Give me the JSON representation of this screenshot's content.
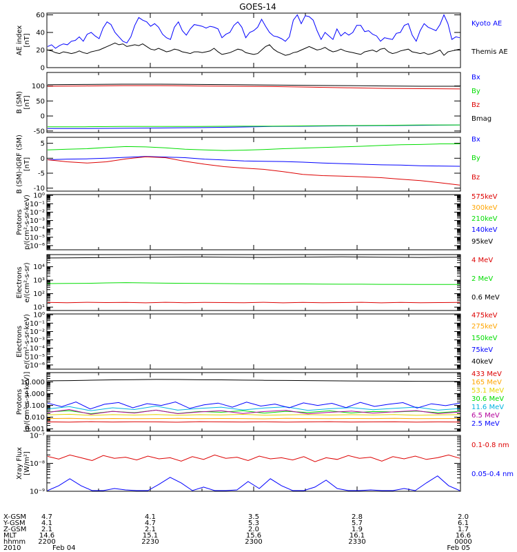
{
  "title": "GOES-14",
  "colors": {
    "black": "#000000",
    "blue": "#0000ff",
    "green": "#00dd00",
    "red": "#dd0000",
    "orange": "#ffa500",
    "gold": "#e6d200",
    "cyan": "#00b4e0",
    "magenta": "#b4009b"
  },
  "time_axis": {
    "row_labels": [
      "X-GSM",
      "Y-GSM",
      "Z-GSM",
      "MLT",
      "hhmm",
      "2010"
    ],
    "columns": [
      [
        "4.7",
        "4.1",
        "2.1",
        "14.6",
        "2200",
        "Feb 04"
      ],
      [
        "4.1",
        "4.7",
        "2.1",
        "15.1",
        "2230",
        ""
      ],
      [
        "3.5",
        "5.3",
        "2.0",
        "15.6",
        "2300",
        ""
      ],
      [
        "2.8",
        "5.7",
        "1.9",
        "16.1",
        "2330",
        ""
      ],
      [
        "2.0",
        "6.1",
        "1.7",
        "16.6",
        "0000",
        "Feb 05"
      ]
    ]
  },
  "chart_data": [
    {
      "type": "line",
      "ylabel": "AE index",
      "yunit": "[nT]",
      "scale": "linear",
      "ylim": [
        0,
        62
      ],
      "ticks": [
        {
          "label": "60",
          "v": 60
        },
        {
          "label": "40",
          "v": 40
        },
        {
          "label": "20",
          "v": 20
        },
        {
          "label": "0",
          "v": 0
        }
      ],
      "series": [
        {
          "name": "Kyoto AE",
          "color": "#0000ff",
          "values": [
            24,
            26,
            22,
            25,
            27,
            26,
            30,
            31,
            35,
            30,
            38,
            40,
            36,
            33,
            45,
            52,
            49,
            40,
            35,
            30,
            28,
            35,
            48,
            57,
            54,
            52,
            47,
            50,
            46,
            38,
            34,
            32,
            46,
            52,
            42,
            37,
            44,
            49,
            48,
            47,
            45,
            47,
            46,
            44,
            34,
            38,
            40,
            48,
            52,
            46,
            34,
            40,
            42,
            46,
            55,
            47,
            40,
            36,
            35,
            33,
            30,
            35,
            54,
            60,
            50,
            59,
            58,
            54,
            42,
            32,
            40,
            36,
            32,
            44,
            36,
            40,
            37,
            40,
            48,
            48,
            41,
            42,
            38,
            36,
            30,
            34,
            33,
            32,
            39,
            40,
            48,
            50,
            37,
            30,
            42,
            50,
            46,
            44,
            42,
            49,
            60,
            50,
            32,
            35,
            34
          ]
        },
        {
          "name": "Themis AE",
          "color": "#000000",
          "values": [
            20,
            19,
            17,
            16,
            18,
            17,
            16,
            17,
            19,
            17,
            16,
            18,
            19,
            20,
            22,
            24,
            26,
            28,
            26,
            27,
            24,
            25,
            26,
            25,
            27,
            24,
            21,
            20,
            22,
            20,
            18,
            19,
            21,
            20,
            18,
            17,
            16,
            18,
            18,
            17,
            18,
            19,
            22,
            18,
            15,
            16,
            17,
            19,
            21,
            20,
            17,
            16,
            15,
            16,
            20,
            24,
            26,
            21,
            18,
            16,
            14,
            15,
            17,
            18,
            20,
            22,
            24,
            22,
            20,
            21,
            23,
            20,
            18,
            19,
            21,
            19,
            18,
            17,
            16,
            15,
            18,
            19,
            20,
            18,
            21,
            22,
            18,
            16,
            17,
            19,
            20,
            21,
            18,
            17,
            16,
            17,
            15,
            16,
            18,
            20,
            14,
            18,
            19,
            20,
            21
          ]
        }
      ]
    },
    {
      "type": "line",
      "ylabel": "B (SM)",
      "yunit": "[nT]",
      "scale": "linear",
      "ylim": [
        -55,
        145
      ],
      "ticks": [
        {
          "label": "100",
          "v": 100
        },
        {
          "label": "50",
          "v": 50
        },
        {
          "label": "0",
          "v": 0
        },
        {
          "label": "-50",
          "v": -50
        }
      ],
      "series": [
        {
          "name": "Bx",
          "color": "#0000ff",
          "values": [
            -42,
            -42,
            -41,
            -40,
            -39,
            -37,
            -35,
            -34,
            -33,
            -32,
            -31,
            -30
          ]
        },
        {
          "name": "By",
          "color": "#00dd00",
          "values": [
            -36,
            -36,
            -35,
            -35,
            -35,
            -34,
            -34,
            -33,
            -32,
            -31,
            -30,
            -30
          ]
        },
        {
          "name": "Bz",
          "color": "#dd0000",
          "values": [
            99,
            100,
            101,
            101,
            100,
            99,
            98,
            96,
            94,
            92,
            91,
            90
          ]
        },
        {
          "name": "Bmag",
          "color": "#000000",
          "values": [
            104,
            105,
            106,
            106,
            105,
            104,
            103,
            102,
            101,
            100,
            99,
            99
          ]
        }
      ]
    },
    {
      "type": "line",
      "ylabel": "B (SM)-IGRF (SM)",
      "yunit": "[nT]",
      "scale": "linear",
      "ylim": [
        -11,
        7
      ],
      "ticks": [
        {
          "label": "5",
          "v": 5
        },
        {
          "label": "0",
          "v": 0
        },
        {
          "label": "-5",
          "v": -5
        },
        {
          "label": "-10",
          "v": -10
        }
      ],
      "series": [
        {
          "name": "Bx",
          "color": "#0000ff",
          "values": [
            -0.5,
            -0.3,
            -0.2,
            0,
            0.3,
            0.6,
            0.4,
            0.2,
            -0.3,
            -0.6,
            -0.9,
            -1.0,
            -1.1,
            -1.3,
            -1.6,
            -1.8,
            -2.0,
            -2.2,
            -2.3,
            -2.5,
            -2.6,
            -2.7
          ]
        },
        {
          "name": "By",
          "color": "#00dd00",
          "values": [
            2.8,
            3.0,
            3.2,
            3.6,
            3.9,
            3.8,
            3.5,
            3.0,
            2.8,
            2.6,
            2.7,
            2.9,
            3.2,
            3.4,
            3.6,
            3.8,
            4.0,
            4.3,
            4.5,
            4.6,
            4.8,
            4.8
          ]
        },
        {
          "name": "Bz",
          "color": "#dd0000",
          "values": [
            -0.5,
            -1.2,
            -1.6,
            -1.2,
            -0.2,
            0.5,
            0.2,
            -1.0,
            -2.0,
            -2.8,
            -3.3,
            -3.7,
            -4.5,
            -5.4,
            -5.8,
            -6.0,
            -6.2,
            -6.5,
            -7.0,
            -7.5,
            -8.2,
            -9.0
          ]
        }
      ]
    },
    {
      "type": "line",
      "ylabel": "Protons",
      "yunit": "p/(cm²-s-sr-keV)",
      "scale": "log",
      "ylim": [
        -6.5,
        0.1
      ],
      "ticks": [
        {
          "label": "10⁰",
          "v": 0
        },
        {
          "label": "10⁻¹",
          "v": -1
        },
        {
          "label": "10⁻²",
          "v": -2
        },
        {
          "label": "10⁻³",
          "v": -3
        },
        {
          "label": "10⁻⁴",
          "v": -4
        },
        {
          "label": "10⁻⁵",
          "v": -5
        },
        {
          "label": "10⁻⁶",
          "v": -6
        }
      ],
      "series": [
        {
          "name": "575keV",
          "color": "#dd0000",
          "values": []
        },
        {
          "name": "300keV",
          "color": "#ffa500",
          "values": []
        },
        {
          "name": "210keV",
          "color": "#00dd00",
          "values": []
        },
        {
          "name": "140keV",
          "color": "#0000ff",
          "values": []
        },
        {
          "name": "95keV",
          "color": "#000000",
          "values": []
        }
      ]
    },
    {
      "type": "line",
      "ylabel": "Electrons",
      "yunit": "e/(cm²-s-sr)",
      "scale": "log",
      "ylim": [
        0.75,
        4.9
      ],
      "ticks": [
        {
          "label": "10⁴",
          "v": 4
        },
        {
          "label": "10³",
          "v": 3
        },
        {
          "label": "10²",
          "v": 2
        },
        {
          "label": "10¹",
          "v": 1
        }
      ],
      "series": [
        {
          "name": "4 MeV",
          "color": "#dd0000",
          "values": [
            1.35,
            1.33,
            1.36,
            1.34,
            1.35,
            1.32,
            1.36,
            1.33,
            1.35,
            1.34,
            1.33,
            1.36,
            1.32,
            1.35,
            1.33,
            1.34,
            1.36,
            1.32,
            1.35,
            1.33,
            1.34,
            1.35
          ]
        },
        {
          "name": "2 MeV",
          "color": "#00dd00",
          "values": [
            2.75,
            2.76,
            2.77,
            2.8,
            2.82,
            2.8,
            2.78,
            2.77,
            2.76,
            2.75,
            2.74,
            2.73,
            2.72,
            2.72,
            2.71,
            2.7,
            2.7,
            2.69,
            2.69,
            2.68,
            2.68,
            2.68
          ]
        },
        {
          "name": "0.6 MeV",
          "color": "#000000",
          "values": [
            4.65,
            4.66,
            4.67,
            4.68,
            4.69,
            4.7,
            4.71,
            4.72,
            4.72,
            4.71,
            4.7,
            4.69,
            4.7,
            4.71,
            4.72,
            4.73,
            4.72,
            4.71,
            4.7,
            4.69,
            4.7,
            4.71
          ]
        }
      ]
    },
    {
      "type": "line",
      "ylabel": "Electrons",
      "yunit": "e/(cm²-s-sr-keV)",
      "scale": "log",
      "ylim": [
        -6.5,
        0.1
      ],
      "ticks": [
        {
          "label": "10⁰",
          "v": 0
        },
        {
          "label": "10⁻¹",
          "v": -1
        },
        {
          "label": "10⁻²",
          "v": -2
        },
        {
          "label": "10⁻³",
          "v": -3
        },
        {
          "label": "10⁻⁴",
          "v": -4
        },
        {
          "label": "10⁻⁵",
          "v": -5
        },
        {
          "label": "10⁻⁶",
          "v": -6
        }
      ],
      "series": [
        {
          "name": "475keV",
          "color": "#dd0000",
          "values": []
        },
        {
          "name": "275keV",
          "color": "#ffa500",
          "values": []
        },
        {
          "name": "150keV",
          "color": "#00dd00",
          "values": []
        },
        {
          "name": "75keV",
          "color": "#0000ff",
          "values": []
        },
        {
          "name": "40keV",
          "color": "#000000",
          "values": []
        }
      ]
    },
    {
      "type": "line",
      "ylabel": "Protons",
      "yunit": "[p/(cm²-s-sr-keV)]",
      "scale": "log",
      "ylim": [
        -3.2,
        1.8
      ],
      "ticks": [
        {
          "label": "10.000",
          "v": 1
        },
        {
          "label": "1.000",
          "v": 0
        },
        {
          "label": "0.100",
          "v": -1
        },
        {
          "label": "0.010",
          "v": -2
        },
        {
          "label": "0.001",
          "v": -3
        }
      ],
      "series": [
        {
          "name": "433 MeV",
          "color": "#dd0000",
          "values": [
            -2.4,
            -2.42,
            -2.38,
            -2.41,
            -2.39,
            -2.4,
            -2.43,
            -2.38,
            -2.4,
            -2.41,
            -2.39,
            -2.42,
            -2.4,
            -2.38,
            -2.41,
            -2.4,
            -2.39,
            -2.42,
            -2.4,
            -2.41
          ]
        },
        {
          "name": "165 MeV",
          "color": "#ffa500",
          "values": [
            -2.12,
            -2.1,
            -2.14,
            -2.11,
            -2.13,
            -2.12,
            -2.1,
            -2.13,
            -2.11,
            -2.12,
            -2.14,
            -2.1,
            -2.12,
            -2.13,
            -2.11,
            -2.12,
            -2.1,
            -2.13,
            -2.12,
            -2.11
          ]
        },
        {
          "name": "53.1 MeV",
          "color": "#e6d200",
          "values": [
            -1.8,
            -1.75,
            -1.85,
            -1.78,
            -1.82,
            -1.77,
            -1.84,
            -1.79,
            -1.81,
            -1.76,
            -1.83,
            -1.8,
            -1.78,
            -1.82,
            -1.79,
            -1.81,
            -1.77,
            -1.84,
            -1.8,
            -1.79
          ]
        },
        {
          "name": "30.6 MeV",
          "color": "#00dd00",
          "values": [
            -1.55,
            -1.45,
            -1.7,
            -1.5,
            -1.62,
            -1.4,
            -1.68,
            -1.52,
            -1.58,
            -1.44,
            -1.66,
            -1.5,
            -1.6,
            -1.46,
            -1.64,
            -1.52,
            -1.56,
            -1.48,
            -1.62,
            -1.5
          ]
        },
        {
          "name": "11.6 MeV",
          "color": "#00b4e0",
          "values": [
            -1.3,
            -1.1,
            -1.45,
            -1.2,
            -1.35,
            -1.05,
            -1.4,
            -1.25,
            -1.15,
            -1.38,
            -1.22,
            -1.12,
            -1.42,
            -1.28,
            -1.18,
            -1.36,
            -1.24,
            -1.14,
            -1.4,
            -1.26
          ]
        },
        {
          "name": "6.5 MeV",
          "color": "#b4009b",
          "values": [
            -1.6,
            -1.35,
            -1.75,
            -1.5,
            -1.65,
            -1.4,
            -1.7,
            -1.55,
            -1.45,
            -1.68,
            -1.52,
            -1.42,
            -1.72,
            -1.58,
            -1.48,
            -1.66,
            -1.54,
            -1.44,
            -1.7,
            -1.56
          ]
        },
        {
          "name": "2.5 MeV",
          "color": "#0000ff",
          "values": [
            -0.8,
            -1.1,
            -0.7,
            -1.3,
            -0.9,
            -0.75,
            -1.2,
            -0.85,
            -1.0,
            -0.7,
            -1.25,
            -0.95,
            -0.8,
            -1.15,
            -0.72,
            -1.05,
            -0.88,
            -1.2,
            -0.78,
            -1.0,
            -0.82,
            -1.18,
            -0.74,
            -1.08,
            -0.9,
            -0.76,
            -1.22,
            -0.86,
            -1.02,
            -0.8
          ]
        },
        {
          "name": "",
          "color": "#000000",
          "values": [
            1.1,
            1.12,
            1.15,
            1.18,
            1.2,
            1.22,
            1.21,
            1.19,
            1.18,
            1.16,
            1.14,
            1.13,
            1.12,
            1.1,
            1.09,
            1.08,
            1.07,
            1.06,
            1.05,
            1.05
          ]
        }
      ]
    },
    {
      "type": "line",
      "ylabel": "Xray Flux",
      "yunit": "[W/m²]",
      "scale": "log",
      "ylim": [
        -9.0,
        -7.0
      ],
      "ticks": [
        {
          "label": "10⁻⁷",
          "v": -7
        },
        {
          "label": "10⁻⁸",
          "v": -8
        },
        {
          "label": "10⁻⁹",
          "v": -9
        }
      ],
      "series": [
        {
          "name": "0.1-0.8 nm",
          "color": "#dd0000",
          "values": [
            -7.75,
            -7.85,
            -7.7,
            -7.8,
            -7.9,
            -7.72,
            -7.82,
            -7.78,
            -7.88,
            -7.74,
            -7.84,
            -7.8,
            -7.92,
            -7.76,
            -7.86,
            -7.7,
            -7.82,
            -7.78,
            -7.9,
            -7.74,
            -7.84,
            -7.8,
            -7.88,
            -7.76,
            -7.94,
            -7.8,
            -7.86,
            -7.72,
            -7.82,
            -7.78,
            -7.92,
            -7.76,
            -7.84,
            -7.74,
            -7.86,
            -7.8,
            -7.7,
            -7.82
          ]
        },
        {
          "name": "0.05-0.4 nm",
          "color": "#0000ff",
          "values": [
            -9.0,
            -8.8,
            -8.55,
            -8.8,
            -9.0,
            -9.0,
            -8.9,
            -8.95,
            -9.0,
            -9.0,
            -8.75,
            -8.5,
            -8.7,
            -9.0,
            -8.85,
            -9.0,
            -9.0,
            -8.95,
            -8.65,
            -8.9,
            -8.55,
            -8.8,
            -9.0,
            -9.0,
            -8.85,
            -8.6,
            -8.9,
            -9.0,
            -9.0,
            -8.95,
            -9.0,
            -9.0,
            -8.9,
            -9.0,
            -8.7,
            -8.45,
            -8.8,
            -9.0
          ]
        }
      ]
    }
  ]
}
